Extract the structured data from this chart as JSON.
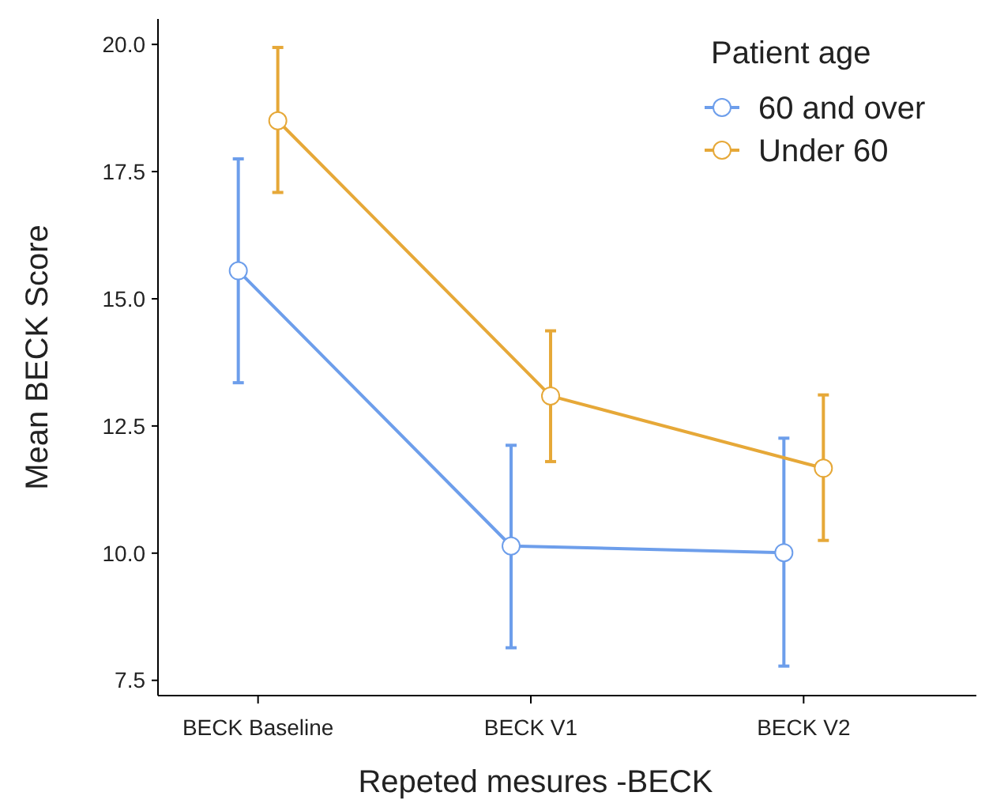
{
  "chart_data": {
    "type": "line",
    "xlabel": "Repeted mesures -BECK",
    "ylabel": "Mean BECK Score",
    "legend_title": "Patient age",
    "legend": "top right",
    "marker": "circle",
    "grid": false,
    "categories": [
      "BECK Baseline",
      "BECK V1",
      "BECK V2"
    ],
    "ylim": [
      7.2,
      20.5
    ],
    "yticks": [
      {
        "value": 7.5,
        "label": "7.5"
      },
      {
        "value": 10,
        "label": "10.0"
      },
      {
        "value": 12.5,
        "label": "12.5"
      },
      {
        "value": 15,
        "label": "15.0"
      },
      {
        "value": 17.5,
        "label": "17.5"
      },
      {
        "value": 20,
        "label": "20.0"
      }
    ],
    "series": [
      {
        "name": "60 and over",
        "color": "#6d9eeb",
        "values": [
          15.55,
          10.14,
          10.01
        ],
        "errors": [
          [
            13.35,
            17.75
          ],
          [
            8.14,
            12.12
          ],
          [
            7.78,
            12.26
          ]
        ]
      },
      {
        "name": "Under 60",
        "color": "#e6a838",
        "values": [
          18.5,
          13.09,
          11.67
        ],
        "errors": [
          [
            17.09,
            19.94
          ],
          [
            11.8,
            14.37
          ],
          [
            10.25,
            13.11
          ]
        ]
      }
    ]
  }
}
